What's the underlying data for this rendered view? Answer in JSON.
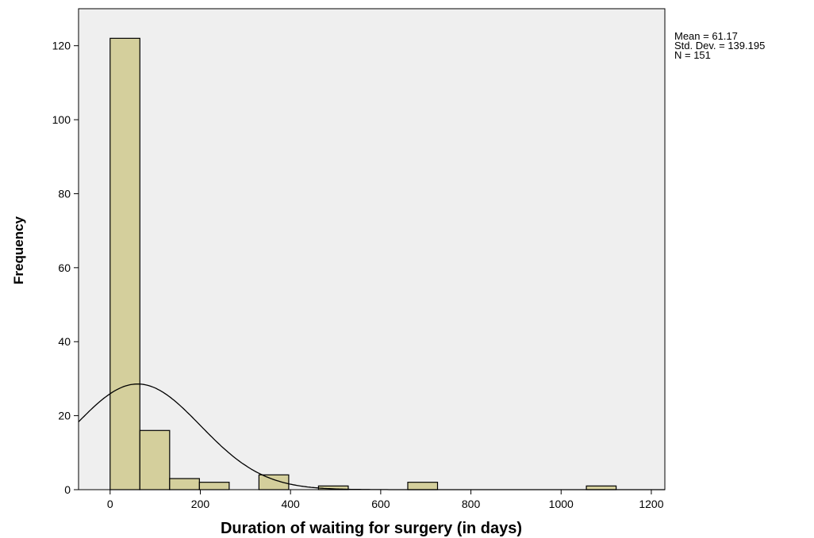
{
  "chart_data": {
    "type": "histogram",
    "xlabel": "Duration of waiting for surgery (in days)",
    "ylabel": "Frequency",
    "xlim": [
      -70,
      1230
    ],
    "ylim": [
      0,
      130
    ],
    "x_ticks": [
      0,
      200,
      400,
      600,
      800,
      1000,
      1200
    ],
    "y_ticks": [
      0,
      20,
      40,
      60,
      80,
      100,
      120
    ],
    "bin_width": 66,
    "bins": [
      {
        "start": 0,
        "end": 66,
        "count": 122
      },
      {
        "start": 66,
        "end": 132,
        "count": 16
      },
      {
        "start": 132,
        "end": 198,
        "count": 3
      },
      {
        "start": 198,
        "end": 264,
        "count": 2
      },
      {
        "start": 330,
        "end": 396,
        "count": 4
      },
      {
        "start": 462,
        "end": 528,
        "count": 1
      },
      {
        "start": 660,
        "end": 726,
        "count": 2
      },
      {
        "start": 1056,
        "end": 1122,
        "count": 1
      }
    ],
    "normal_curve": {
      "mean": 61.17,
      "sd": 139.195,
      "n": 151
    },
    "grid": false,
    "bar_color": "#d4cf9c",
    "plot_background": "#efefef",
    "stats": {
      "mean_text": "Mean = 61.17",
      "sd_text": "Std. Dev. = 139.195",
      "n_text": "N = 151"
    }
  }
}
